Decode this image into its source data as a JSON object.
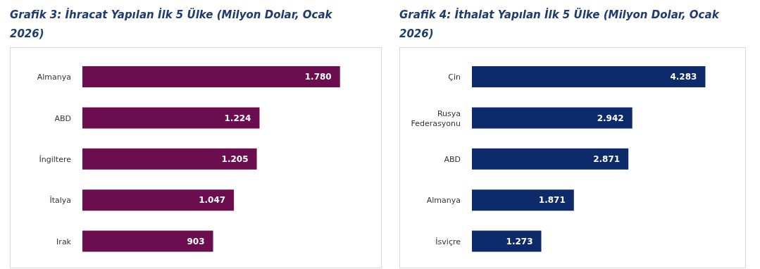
{
  "chart_data": [
    {
      "type": "bar",
      "orientation": "horizontal",
      "title": "Grafik 3: İhracat Yapılan İlk 5 Ülke (Milyon Dolar, Ocak 2026)",
      "categories": [
        "Almanya",
        "ABD",
        "İngiltere",
        "İtalya",
        "Irak"
      ],
      "values": [
        1780,
        1224,
        1205,
        1047,
        903
      ],
      "value_labels": [
        "1.780",
        "1.224",
        "1.205",
        "1.047",
        "903"
      ],
      "color": "#6b0d4f"
    },
    {
      "type": "bar",
      "orientation": "horizontal",
      "title": "Grafik 4: İthalat Yapılan İlk 5 Ülke (Milyon Dolar, Ocak 2026)",
      "categories": [
        "Çin",
        "Rusya Federasyonu",
        "ABD",
        "Almanya",
        "İsviçre"
      ],
      "values": [
        4283,
        2942,
        2871,
        1871,
        1273
      ],
      "value_labels": [
        "4.283",
        "2.942",
        "2.871",
        "1.871",
        "1.273"
      ],
      "color": "#0d2a6b"
    }
  ]
}
